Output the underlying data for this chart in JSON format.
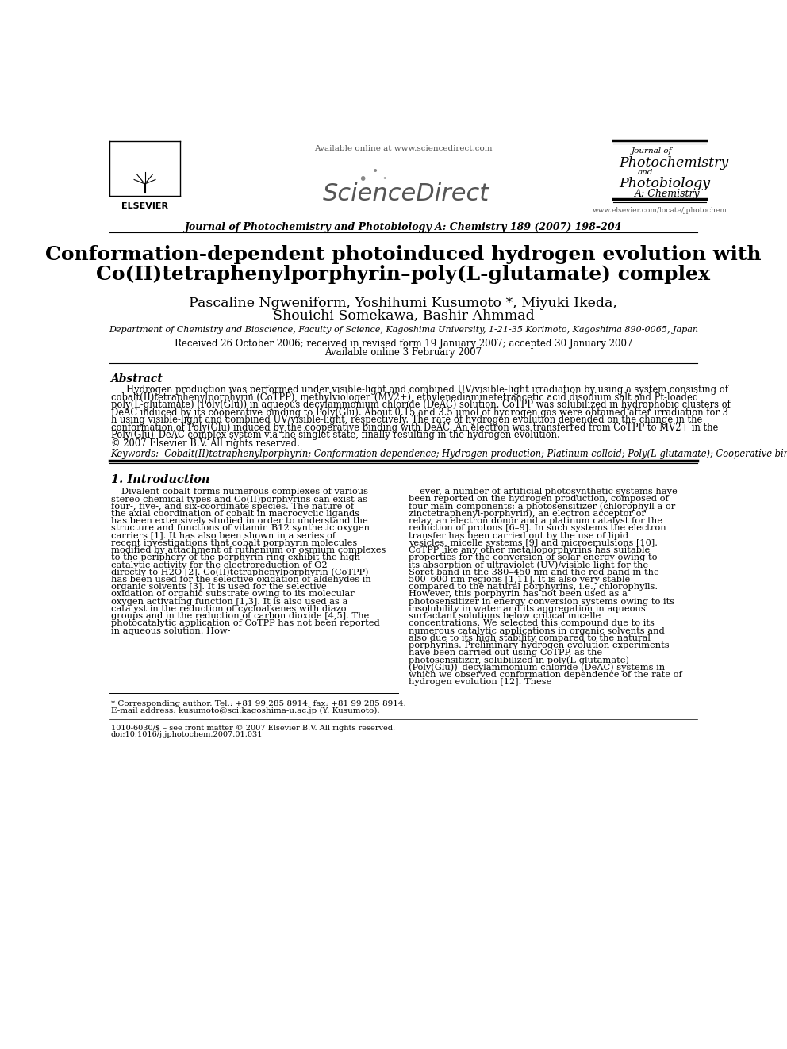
{
  "bg_color": "#ffffff",
  "title_line1": "Conformation-dependent photoinduced hydrogen evolution with",
  "title_line2": "Co(II)tetraphenylporphyrin–poly(L-glutamate) complex",
  "authors": "Pascaline Ngweniform, Yoshihumi Kusumoto *, Miyuki Ikeda,",
  "authors2": "Shouichi Somekawa, Bashir Ahmmad",
  "affiliation": "Department of Chemistry and Bioscience, Faculty of Science, Kagoshima University, 1-21-35 Korimoto, Kagoshima 890-0065, Japan",
  "received": "Received 26 October 2006; received in revised form 19 January 2007; accepted 30 January 2007",
  "available": "Available online 3 February 2007",
  "journal_header": "Journal of Photochemistry and Photobiology A: Chemistry 189 (2007) 198–204",
  "url_elsevier": "www.elsevier.com/locate/jphotochem",
  "available_online": "Available online at www.sciencedirect.com",
  "abstract_title": "Abstract",
  "abstract_text": "Hydrogen production was performed under visible-light and combined UV/visible-light irradiation by using a system consisting of cobalt(II)tetraphenylporphyrin (CoTPP), methylviologen (MV2+), ethylenediaminetetraacetic acid disodium salt and Pt-loaded poly(L-glutamate) (Poly(Glu)) in aqueous decylammonium chloride (DeAC) solution. CoTPP was solubilized in hydrophobic clusters of DeAC induced by its cooperative binding to Poly(Glu). About 0.15 and 3.5 μmol of hydrogen gas were obtained after irradiation for 3 h using visible-light and combined UV/visible-light, respectively. The rate of hydrogen evolution depended on the change in the conformation of Poly(Glu) induced by the cooperative binding with DeAC. An electron was transferred from CoTPP to MV2+ in the Poly(Glu)–DeAC complex system via the singlet state, finally resulting in the hydrogen evolution.",
  "copyright": "© 2007 Elsevier B.V. All rights reserved.",
  "keywords": "Keywords:  Cobalt(II)tetraphenylporphyrin; Conformation dependence; Hydrogen production; Platinum colloid; Poly(L-glutamate); Cooperative binding",
  "section1_title": "1. Introduction",
  "intro_col1": "Divalent cobalt forms numerous complexes of various stereo chemical types and Co(II)porphyrins can exist as four-, five-, and six-coordinate species. The nature of the axial coordination of cobalt in macrocyclic ligands has been extensively studied in order to understand the structure and functions of vitamin B12 synthetic oxygen carriers [1]. It has also been shown in a series of recent investigations that cobalt porphyrin molecules modified by attachment of ruthenium or osmium complexes to the periphery of the porphyrin ring exhibit the high catalytic activity for the electroreduction of O2 directly to H2O [2]. Co(II)tetraphenylporphyrin (CoTPP) has been used for the selective oxidation of aldehydes in organic solvents [3]. It is used for the selective oxidation of organic substrate owing to its molecular oxygen activating function [1,3]. It is also used as a catalyst in the reduction of cycloalkenes with diazo groups and in the reduction of carbon dioxide [4,5]. The photocatalytic application of CoTPP has not been reported in aqueous solution. How-",
  "intro_col2": "ever, a number of artificial photosynthetic systems have been reported on the hydrogen production, composed of four main components: a photosensitizer (chlorophyll a or zinctetraphenyl-porphyrin), an electron acceptor or relay, an electron donor and a platinum catalyst for the reduction of protons [6–9]. In such systems the electron transfer has been carried out by the use of lipid vesicles, micelle systems [9] and microemulsions [10]. CoTPP like any other metalloporphyrins has suitable properties for the conversion of solar energy owing to its absorption of ultraviolet (UV)/visible-light for the Soret band in the 380–450 nm and the red band in the 500–600 nm regions [1,11]. It is also very stable compared to the natural porphyrins, i.e., chlorophylls. However, this porphyrin has not been used as a photosensitizer in energy conversion systems owing to its insolubility in water and its aggregation in aqueous surfactant solutions below critical micelle concentrations. We selected this compound due to its numerous catalytic applications in organic solvents and also due to its high stability compared to the natural porphyrins. Preliminary hydrogen evolution experiments have been carried out using CoTPP, as the photosensitizer, solubilized in poly(L-glutamate) (Poly(Glu))–decylammonium chloride (DeAC) systems in which we observed conformation dependence of the rate of hydrogen evolution [12]. These",
  "footnote1": "* Corresponding author. Tel.: +81 99 285 8914; fax: +81 99 285 8914.",
  "footnote2": "E-mail address: kusumoto@sci.kagoshima-u.ac.jp (Y. Kusumoto).",
  "footer1": "1010-6030/$ – see front matter © 2007 Elsevier B.V. All rights reserved.",
  "footer2": "doi:10.1016/j.jphotochem.2007.01.031"
}
